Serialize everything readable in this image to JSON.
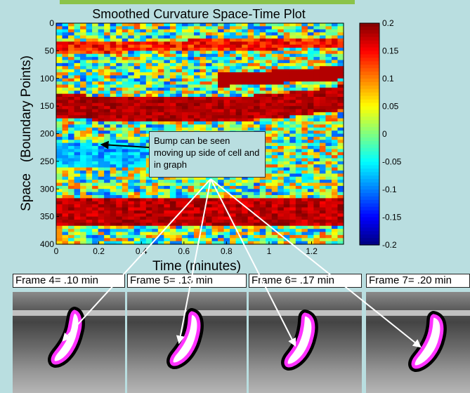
{
  "chart_data": {
    "type": "heatmap",
    "title": "Smoothed Curvature Space-Time Plot",
    "xlabel": "Time (minutes)",
    "ylabel": "Space   (Boundary Points)",
    "xlim": [
      0,
      1.35
    ],
    "ylim": [
      0,
      400
    ],
    "x_ticks": [
      0,
      0.2,
      0.4,
      0.6,
      0.8,
      1,
      1.2
    ],
    "x_tick_labels": [
      "0",
      "0.2",
      "0.4",
      "0.6",
      "0.8",
      "1",
      "1.2"
    ],
    "y_ticks": [
      0,
      50,
      100,
      150,
      200,
      250,
      300,
      350,
      400
    ],
    "y_tick_labels": [
      "0",
      "50",
      "100",
      "150",
      "200",
      "250",
      "300",
      "350",
      "400"
    ],
    "colorbar": {
      "range": [
        -0.2,
        0.2
      ],
      "ticks": [
        0.2,
        0.15,
        0.1,
        0.05,
        0,
        -0.05,
        -0.1,
        -0.15,
        -0.2
      ],
      "tick_labels": [
        "0.2",
        "0.15",
        "0.1",
        "0.05",
        "0",
        "-0.05",
        "-0.1",
        "-0.15",
        "-0.2"
      ],
      "colormap": "jet"
    },
    "annotation": "Bump can be seen moving up side of cell and in graph"
  },
  "frames": [
    {
      "label": "Frame 4= .10 min"
    },
    {
      "label": "Frame 5= .13 min"
    },
    {
      "label": "Frame 6= .17 min"
    },
    {
      "label": "Frame 7= .20 min"
    }
  ],
  "colors": {
    "background": "#b9dee0",
    "cell_outline": "#ff33ff",
    "arrow": "#ffffff"
  }
}
